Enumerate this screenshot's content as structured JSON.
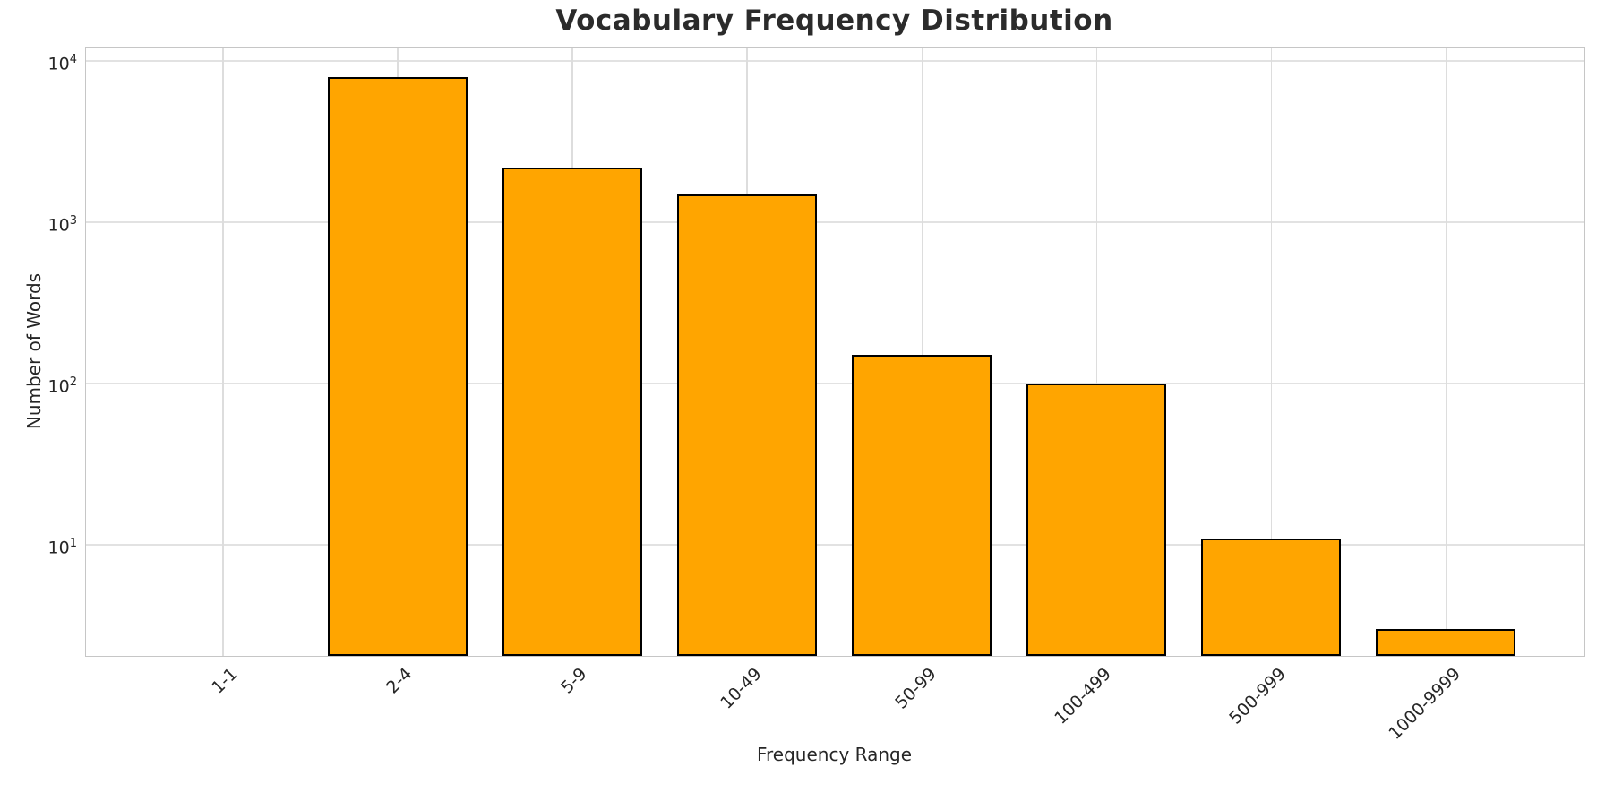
{
  "chart_data": {
    "type": "bar",
    "title": "Vocabulary Frequency Distribution",
    "xlabel": "Frequency Range",
    "ylabel": "Number of Words",
    "categories": [
      "1-1",
      "2-4",
      "5-9",
      "10-49",
      "50-99",
      "100-499",
      "500-999",
      "1000-9999"
    ],
    "values": [
      0,
      8000,
      2200,
      1500,
      150,
      100,
      11,
      3
    ],
    "yscale": "log",
    "ylim": [
      2.05,
      12000
    ],
    "y_ticks": [
      {
        "base": "10",
        "exp": "4",
        "value": 10000
      },
      {
        "base": "10",
        "exp": "3",
        "value": 1000
      },
      {
        "base": "10",
        "exp": "2",
        "value": 100
      },
      {
        "base": "10",
        "exp": "1",
        "value": 10
      }
    ],
    "grid": true,
    "legend_visible": false,
    "bar_color": "#FFA500",
    "bar_edge_color": "#000000",
    "background_color": "#FFFFFF",
    "grid_color": "#E2E2E2",
    "spine_color": "#C6C6C6",
    "text_color": "#262626",
    "x_tick_rotation_deg": 45
  }
}
